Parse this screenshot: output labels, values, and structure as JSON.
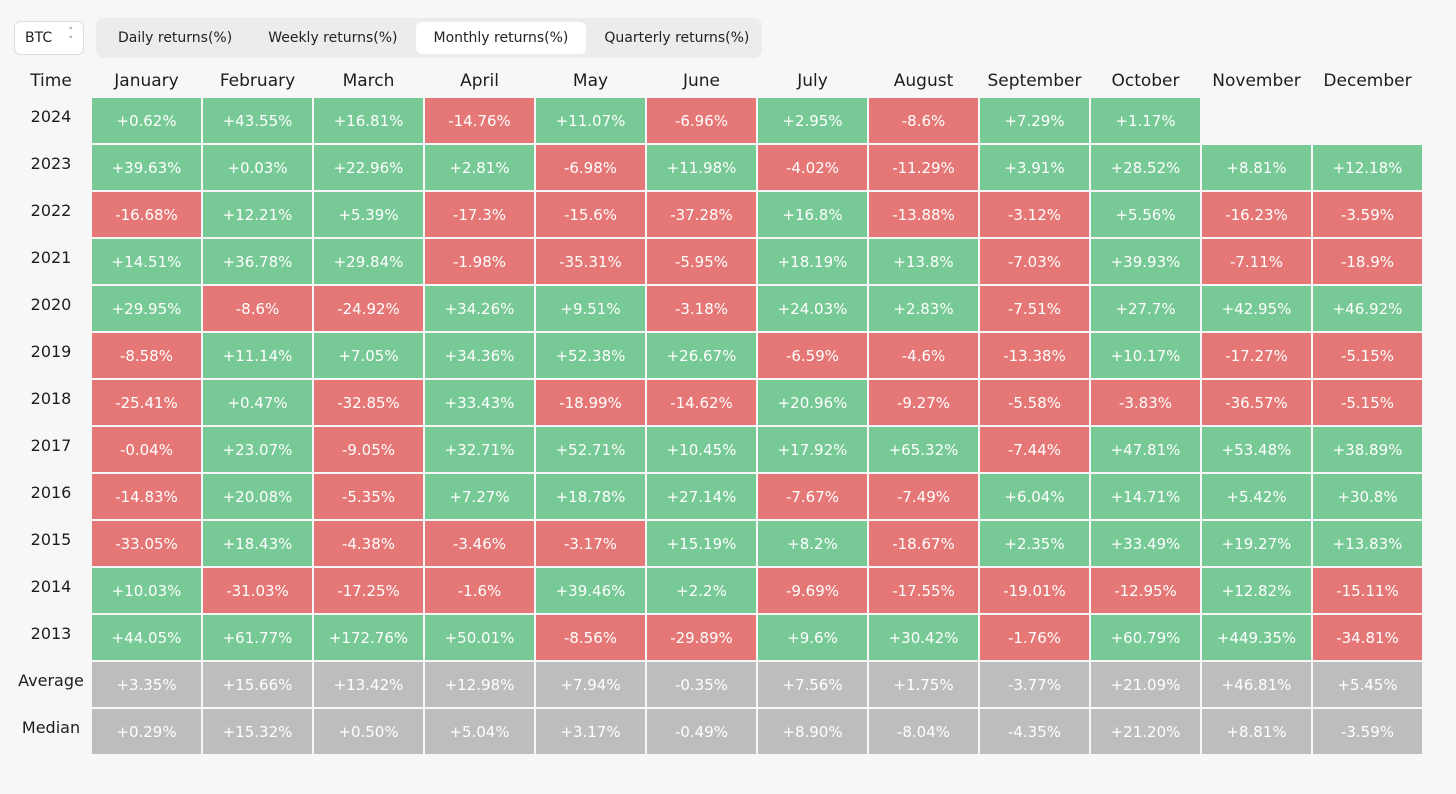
{
  "asset_select": {
    "value": "BTC"
  },
  "tabs": [
    {
      "label": "Daily returns(%)",
      "active": false
    },
    {
      "label": "Weekly returns(%)",
      "active": false
    },
    {
      "label": "Monthly returns(%)",
      "active": true
    },
    {
      "label": "Quarterly returns(%)",
      "active": false
    }
  ],
  "colors": {
    "positive": "#77c995",
    "negative": "#e57876",
    "stat": "#bdbdbd"
  },
  "chart_data": {
    "type": "heatmap",
    "title": "Monthly returns(%)",
    "row_header": "Time",
    "columns": [
      "January",
      "February",
      "March",
      "April",
      "May",
      "June",
      "July",
      "August",
      "September",
      "October",
      "November",
      "December"
    ],
    "rows": [
      {
        "label": "2024",
        "kind": "year",
        "values": [
          "+0.62%",
          "+43.55%",
          "+16.81%",
          "-14.76%",
          "+11.07%",
          "-6.96%",
          "+2.95%",
          "-8.6%",
          "+7.29%",
          "+1.17%",
          null,
          null
        ]
      },
      {
        "label": "2023",
        "kind": "year",
        "values": [
          "+39.63%",
          "+0.03%",
          "+22.96%",
          "+2.81%",
          "-6.98%",
          "+11.98%",
          "-4.02%",
          "-11.29%",
          "+3.91%",
          "+28.52%",
          "+8.81%",
          "+12.18%"
        ]
      },
      {
        "label": "2022",
        "kind": "year",
        "values": [
          "-16.68%",
          "+12.21%",
          "+5.39%",
          "-17.3%",
          "-15.6%",
          "-37.28%",
          "+16.8%",
          "-13.88%",
          "-3.12%",
          "+5.56%",
          "-16.23%",
          "-3.59%"
        ]
      },
      {
        "label": "2021",
        "kind": "year",
        "values": [
          "+14.51%",
          "+36.78%",
          "+29.84%",
          "-1.98%",
          "-35.31%",
          "-5.95%",
          "+18.19%",
          "+13.8%",
          "-7.03%",
          "+39.93%",
          "-7.11%",
          "-18.9%"
        ]
      },
      {
        "label": "2020",
        "kind": "year",
        "values": [
          "+29.95%",
          "-8.6%",
          "-24.92%",
          "+34.26%",
          "+9.51%",
          "-3.18%",
          "+24.03%",
          "+2.83%",
          "-7.51%",
          "+27.7%",
          "+42.95%",
          "+46.92%"
        ]
      },
      {
        "label": "2019",
        "kind": "year",
        "values": [
          "-8.58%",
          "+11.14%",
          "+7.05%",
          "+34.36%",
          "+52.38%",
          "+26.67%",
          "-6.59%",
          "-4.6%",
          "-13.38%",
          "+10.17%",
          "-17.27%",
          "-5.15%"
        ]
      },
      {
        "label": "2018",
        "kind": "year",
        "values": [
          "-25.41%",
          "+0.47%",
          "-32.85%",
          "+33.43%",
          "-18.99%",
          "-14.62%",
          "+20.96%",
          "-9.27%",
          "-5.58%",
          "-3.83%",
          "-36.57%",
          "-5.15%"
        ]
      },
      {
        "label": "2017",
        "kind": "year",
        "values": [
          "-0.04%",
          "+23.07%",
          "-9.05%",
          "+32.71%",
          "+52.71%",
          "+10.45%",
          "+17.92%",
          "+65.32%",
          "-7.44%",
          "+47.81%",
          "+53.48%",
          "+38.89%"
        ]
      },
      {
        "label": "2016",
        "kind": "year",
        "values": [
          "-14.83%",
          "+20.08%",
          "-5.35%",
          "+7.27%",
          "+18.78%",
          "+27.14%",
          "-7.67%",
          "-7.49%",
          "+6.04%",
          "+14.71%",
          "+5.42%",
          "+30.8%"
        ]
      },
      {
        "label": "2015",
        "kind": "year",
        "values": [
          "-33.05%",
          "+18.43%",
          "-4.38%",
          "-3.46%",
          "-3.17%",
          "+15.19%",
          "+8.2%",
          "-18.67%",
          "+2.35%",
          "+33.49%",
          "+19.27%",
          "+13.83%"
        ]
      },
      {
        "label": "2014",
        "kind": "year",
        "values": [
          "+10.03%",
          "-31.03%",
          "-17.25%",
          "-1.6%",
          "+39.46%",
          "+2.2%",
          "-9.69%",
          "-17.55%",
          "-19.01%",
          "-12.95%",
          "+12.82%",
          "-15.11%"
        ]
      },
      {
        "label": "2013",
        "kind": "year",
        "values": [
          "+44.05%",
          "+61.77%",
          "+172.76%",
          "+50.01%",
          "-8.56%",
          "-29.89%",
          "+9.6%",
          "+30.42%",
          "-1.76%",
          "+60.79%",
          "+449.35%",
          "-34.81%"
        ]
      },
      {
        "label": "Average",
        "kind": "stat",
        "values": [
          "+3.35%",
          "+15.66%",
          "+13.42%",
          "+12.98%",
          "+7.94%",
          "-0.35%",
          "+7.56%",
          "+1.75%",
          "-3.77%",
          "+21.09%",
          "+46.81%",
          "+5.45%"
        ]
      },
      {
        "label": "Median",
        "kind": "stat",
        "values": [
          "+0.29%",
          "+15.32%",
          "+0.50%",
          "+5.04%",
          "+3.17%",
          "-0.49%",
          "+8.90%",
          "-8.04%",
          "-4.35%",
          "+21.20%",
          "+8.81%",
          "-3.59%"
        ]
      }
    ]
  }
}
